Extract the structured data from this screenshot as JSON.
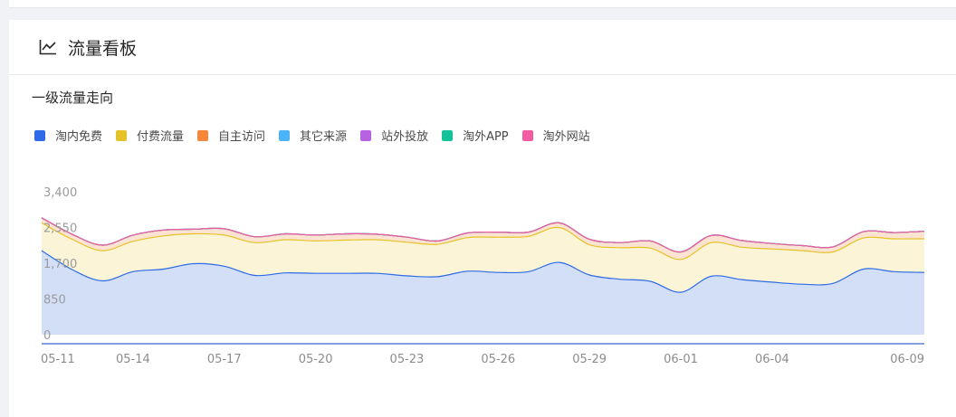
{
  "panel": {
    "title": "流量看板",
    "section_title": "一级流量走向"
  },
  "chart_data": {
    "type": "area",
    "stacked": true,
    "title": "",
    "xlabel": "",
    "ylabel": "",
    "ylim": [
      0,
      3400
    ],
    "yticks": [
      0,
      850,
      1700,
      2550,
      3400
    ],
    "ytick_labels": [
      "0",
      "850",
      "1,700",
      "2,550",
      "3,400"
    ],
    "x": [
      "05-11",
      "05-12",
      "05-13",
      "05-14",
      "05-15",
      "05-16",
      "05-17",
      "05-18",
      "05-19",
      "05-20",
      "05-21",
      "05-22",
      "05-23",
      "05-24",
      "05-25",
      "05-26",
      "05-27",
      "05-28",
      "05-29",
      "05-30",
      "05-31",
      "06-01",
      "06-02",
      "06-03",
      "06-04",
      "06-05",
      "06-06",
      "06-07",
      "06-08",
      "06-09"
    ],
    "xtick_labels": [
      "05-11",
      "05-14",
      "05-17",
      "05-20",
      "05-23",
      "05-26",
      "05-29",
      "06-01",
      "06-04",
      "06-09"
    ],
    "legend_position": "top-left",
    "grid": false,
    "series": [
      {
        "name": "淘内免费",
        "color": "#2e6be6",
        "fill": "#d2dff7",
        "values": [
          2000,
          1550,
          1280,
          1500,
          1560,
          1690,
          1630,
          1410,
          1470,
          1460,
          1460,
          1460,
          1400,
          1380,
          1510,
          1480,
          1500,
          1720,
          1420,
          1320,
          1270,
          1010,
          1390,
          1310,
          1250,
          1200,
          1220,
          1560,
          1500,
          1480
        ]
      },
      {
        "name": "付费流量",
        "color": "#e6c229",
        "fill": "#fcf4d6",
        "values": [
          660,
          720,
          720,
          720,
          790,
          710,
          740,
          780,
          790,
          770,
          790,
          800,
          800,
          770,
          800,
          840,
          840,
          830,
          720,
          750,
          790,
          780,
          800,
          770,
          790,
          800,
          750,
          740,
          780,
          800
        ]
      },
      {
        "name": "自主访问",
        "color": "#f5873a",
        "fill": "#fde3d2",
        "values": [
          120,
          120,
          130,
          150,
          140,
          110,
          150,
          140,
          140,
          140,
          150,
          130,
          120,
          80,
          110,
          120,
          100,
          110,
          130,
          120,
          170,
          180,
          170,
          160,
          130,
          120,
          120,
          150,
          150,
          180
        ]
      },
      {
        "name": "其它来源",
        "color": "#4db3f7",
        "fill": "#d8ecfb",
        "values": [
          0,
          0,
          0,
          0,
          0,
          0,
          0,
          0,
          0,
          0,
          0,
          0,
          0,
          0,
          0,
          0,
          0,
          0,
          0,
          0,
          0,
          0,
          0,
          0,
          0,
          0,
          0,
          0,
          0,
          0
        ]
      },
      {
        "name": "站外投放",
        "color": "#b762e0",
        "fill": "#eddcf6",
        "values": [
          0,
          0,
          0,
          0,
          0,
          0,
          0,
          0,
          0,
          0,
          0,
          0,
          0,
          0,
          0,
          0,
          0,
          0,
          0,
          0,
          0,
          0,
          0,
          0,
          0,
          0,
          0,
          0,
          0,
          0
        ]
      },
      {
        "name": "淘外APP",
        "color": "#15c39a",
        "fill": "#d0f1e8",
        "values": [
          0,
          0,
          0,
          0,
          0,
          0,
          0,
          0,
          0,
          0,
          0,
          0,
          0,
          0,
          0,
          0,
          0,
          0,
          0,
          0,
          0,
          0,
          0,
          0,
          0,
          0,
          0,
          0,
          0,
          0
        ]
      },
      {
        "name": "淘外网站",
        "color": "#f25ca2",
        "fill": "#fcdcea",
        "values": [
          0,
          0,
          0,
          0,
          0,
          0,
          0,
          0,
          0,
          0,
          0,
          0,
          0,
          0,
          0,
          0,
          0,
          0,
          0,
          0,
          0,
          0,
          0,
          0,
          0,
          0,
          0,
          0,
          0,
          0
        ]
      }
    ]
  }
}
